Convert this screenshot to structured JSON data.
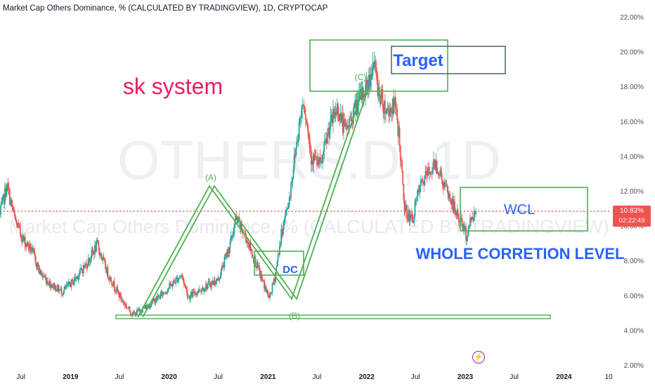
{
  "header": {
    "title": "Market Cap Others Dominance, % (CALCULATED BY TRADINGVIEW), 1D, CRYPTOCAP"
  },
  "watermark": "OTHERS.D, 1D",
  "watermark_sub": "Market Cap Others Dominance, % (CALCULATED BY TRADINGVIEW)",
  "price_tag": {
    "value": "10.83%",
    "countdown": "02:22:49",
    "color": "#ef5350"
  },
  "event_icon": "lightning-bolt-icon",
  "annotations": {
    "brand": "sk system",
    "target": "Target",
    "wave_a": "(A)",
    "wave_b": "(B)",
    "wave_c": "(C)",
    "dc": "DC",
    "wcl": "WCL",
    "wcl_full": "WHOLE CORRETION LEVEL"
  },
  "colors": {
    "up": "#26a69a",
    "down": "#ef5350",
    "drawing": "#4caf50",
    "label_blue": "#2962ff",
    "brand": "#e91e63",
    "target_box": "#546e7a"
  },
  "chart_data": {
    "type": "candlestick",
    "title": "Market Cap Others Dominance, % (CALCULATED BY TRADINGVIEW), 1D, CRYPTOCAP",
    "ylabel": "",
    "ylim": [
      2,
      22
    ],
    "y_ticks": [
      "22.00%",
      "20.00%",
      "18.00%",
      "16.00%",
      "14.00%",
      "12.00%",
      "10.00%",
      "8.00%",
      "6.00%",
      "4.00%",
      "2.00%"
    ],
    "x_ticks": [
      "Jul",
      "2019",
      "Jul",
      "2020",
      "Jul",
      "2021",
      "Jul",
      "2022",
      "Jul",
      "2023",
      "Jul",
      "2024",
      "10"
    ],
    "x_range": [
      "2018-04-15",
      "2024-06-25"
    ],
    "last_value": 10.83,
    "grid": false,
    "series": [
      {
        "points": [
          [
            "2018-04-15",
            10.6
          ],
          [
            "2018-05-10",
            12.3
          ],
          [
            "2018-06-10",
            10.3
          ],
          [
            "2018-07-10",
            9.2
          ],
          [
            "2018-08-10",
            8.6
          ],
          [
            "2018-09-10",
            7.3
          ],
          [
            "2018-10-15",
            6.7
          ],
          [
            "2018-12-01",
            6.2
          ],
          [
            "2019-01-10",
            6.8
          ],
          [
            "2019-03-01",
            7.8
          ],
          [
            "2019-04-10",
            8.9
          ],
          [
            "2019-05-20",
            7.2
          ],
          [
            "2019-07-15",
            5.6
          ],
          [
            "2019-08-20",
            4.9
          ],
          [
            "2019-10-15",
            5.4
          ],
          [
            "2019-12-15",
            6.2
          ],
          [
            "2020-02-15",
            7.2
          ],
          [
            "2020-03-13",
            5.9
          ],
          [
            "2020-05-01",
            6.4
          ],
          [
            "2020-07-01",
            6.9
          ],
          [
            "2020-08-15",
            9.0
          ],
          [
            "2020-09-05",
            10.4
          ],
          [
            "2020-10-15",
            9.2
          ],
          [
            "2020-11-10",
            8.1
          ],
          [
            "2020-12-15",
            6.7
          ],
          [
            "2021-01-05",
            5.8
          ],
          [
            "2021-01-25",
            6.9
          ],
          [
            "2021-02-20",
            9.6
          ],
          [
            "2021-03-20",
            11.5
          ],
          [
            "2021-04-15",
            14.6
          ],
          [
            "2021-05-12",
            17.4
          ],
          [
            "2021-06-10",
            14.0
          ],
          [
            "2021-07-15",
            13.4
          ],
          [
            "2021-08-15",
            15.6
          ],
          [
            "2021-09-15",
            16.8
          ],
          [
            "2021-10-15",
            15.4
          ],
          [
            "2021-11-15",
            16.6
          ],
          [
            "2021-12-15",
            17.5
          ],
          [
            "2022-01-10",
            18.3
          ],
          [
            "2022-01-25",
            19.5
          ],
          [
            "2022-02-15",
            17.7
          ],
          [
            "2022-03-15",
            16.6
          ],
          [
            "2022-04-15",
            16.9
          ],
          [
            "2022-05-01",
            15.2
          ],
          [
            "2022-05-20",
            11.0
          ],
          [
            "2022-06-18",
            10.3
          ],
          [
            "2022-07-15",
            12.1
          ],
          [
            "2022-08-15",
            13.0
          ],
          [
            "2022-09-15",
            13.6
          ],
          [
            "2022-10-15",
            12.3
          ],
          [
            "2022-11-10",
            11.4
          ],
          [
            "2022-12-01",
            10.6
          ],
          [
            "2022-12-20",
            10.1
          ],
          [
            "2023-01-05",
            9.4
          ],
          [
            "2023-01-25",
            10.5
          ],
          [
            "2023-02-10",
            10.83
          ]
        ]
      }
    ]
  }
}
